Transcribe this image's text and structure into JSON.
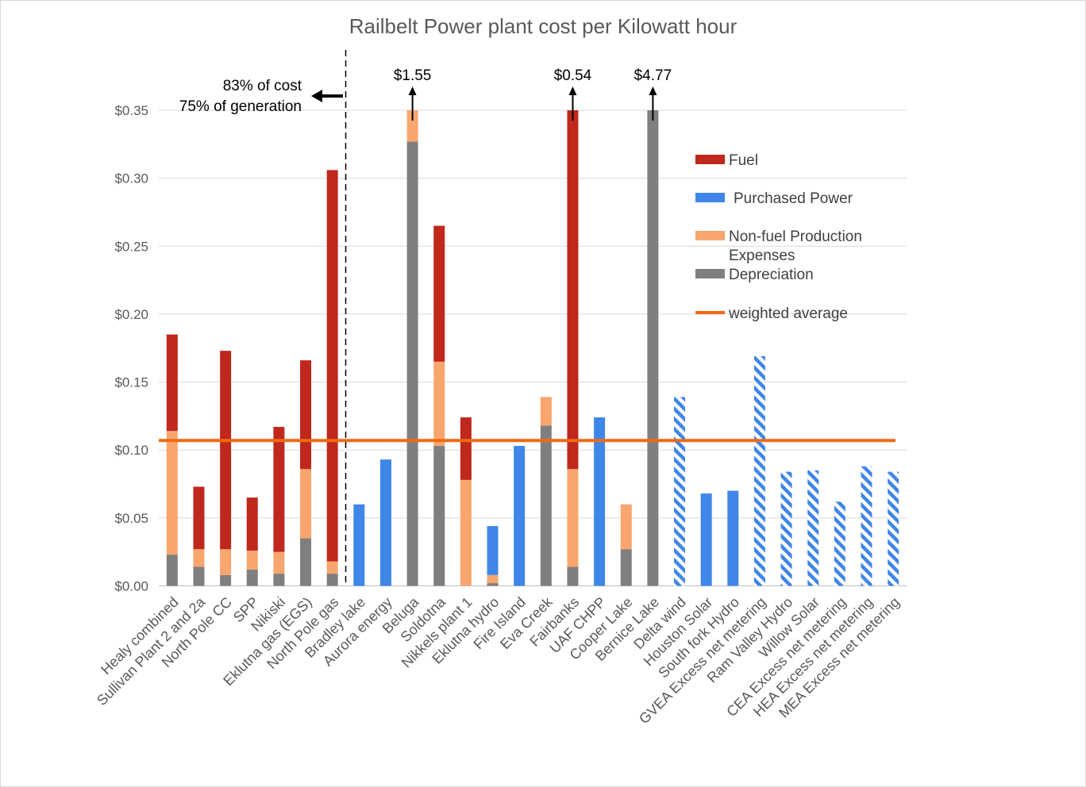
{
  "chart_data": {
    "type": "bar",
    "stacked": true,
    "title": "Railbelt Power plant cost per Kilowatt hour",
    "xlabel": "",
    "ylabel": "",
    "ylim": [
      0,
      0.35
    ],
    "yticks": [
      "$0.00",
      "$0.05",
      "$0.10",
      "$0.15",
      "$0.20",
      "$0.25",
      "$0.30",
      "$0.35"
    ],
    "ytick_values": [
      0,
      0.05,
      0.1,
      0.15,
      0.2,
      0.25,
      0.3,
      0.35
    ],
    "categories": [
      "Healy combined",
      "Sullivan Plant 2 and 2a",
      "North Pole CC",
      "SPP",
      "Nikiski",
      "Eklutna gas (EGS)",
      "North Pole gas",
      "Bradley lake",
      "Aurora energy",
      "Beluga",
      "Soldotna",
      "Nikkels plant 1",
      "Eklutna hydro",
      "Fire Island",
      "Eva Creek",
      "Fairbanks",
      "UAF CHPP",
      "Cooper Lake",
      "Bernice Lake",
      "Delta wind",
      "Houston Solar",
      "South fork Hydro",
      "GVEA Excess net metering",
      "Ram Valley Hydro",
      "Willow Solar",
      "CEA Excess net metering",
      "HEA Excess net metering",
      "MEA Excess net metering"
    ],
    "series": [
      {
        "name": "Depreciation",
        "color": "#7f7f7f",
        "values": [
          0.023,
          0.014,
          0.008,
          0.012,
          0.009,
          0.035,
          0.009,
          0,
          0,
          0.327,
          0.103,
          0,
          0.002,
          0,
          0.118,
          0.014,
          0,
          0.027,
          0.35,
          0,
          0,
          0,
          0,
          0,
          0,
          0,
          0,
          0
        ]
      },
      {
        "name": "Non-fuel Production Expenses",
        "color": "#f8a66d",
        "values": [
          0.091,
          0.013,
          0.019,
          0.014,
          0.016,
          0.051,
          0.009,
          0,
          0,
          0.023,
          0.062,
          0.078,
          0.006,
          0,
          0.021,
          0.072,
          0,
          0.033,
          0,
          0,
          0,
          0,
          0,
          0,
          0,
          0,
          0,
          0
        ]
      },
      {
        "name": "Fuel",
        "color": "#c0271d",
        "values": [
          0.071,
          0.046,
          0.146,
          0.039,
          0.092,
          0.08,
          0.288,
          0,
          0,
          0,
          0.1,
          0.046,
          0,
          0,
          0,
          0.264,
          0,
          0,
          0,
          0,
          0,
          0,
          0,
          0,
          0,
          0,
          0,
          0
        ]
      },
      {
        "name": "Purchased Power",
        "color": "#3f86e8",
        "values": [
          0,
          0,
          0,
          0,
          0,
          0,
          0,
          0.06,
          0.093,
          0,
          0,
          0,
          0.036,
          0.103,
          0,
          0,
          0.124,
          0,
          0,
          0.139,
          0.068,
          0.07,
          0.169,
          0.084,
          0.085,
          0.062,
          0.088,
          0.084
        ]
      }
    ],
    "hatched_categories": [
      "Delta wind",
      "GVEA Excess net metering",
      "Ram Valley Hydro",
      "Willow Solar",
      "CEA Excess net metering",
      "HEA Excess net metering",
      "MEA Excess net metering"
    ],
    "weighted_average": {
      "name": "weighted average",
      "value": 0.107,
      "color": "#f06a14"
    },
    "legend": {
      "position": "right",
      "entries": [
        {
          "label": "Fuel",
          "color": "#c0271d",
          "kind": "box"
        },
        {
          "label": "Purchased Power",
          "color": "#3f86e8",
          "kind": "box"
        },
        {
          "label_lines": [
            "Non-fuel Production",
            "Expenses"
          ],
          "color": "#f8a66d",
          "kind": "box"
        },
        {
          "label": "Depreciation",
          "color": "#7f7f7f",
          "kind": "box"
        },
        {
          "label": "weighted average",
          "color": "#f06a14",
          "kind": "line"
        }
      ]
    },
    "annotations": {
      "divider_after": "North Pole gas",
      "cost_share_lines": [
        "83% of cost",
        "75% of generation"
      ],
      "overflow_labels": [
        {
          "category": "Beluga",
          "text": "$1.55"
        },
        {
          "category": "Fairbanks",
          "text": "$0.54"
        },
        {
          "category": "Bernice Lake",
          "text": "$4.77"
        }
      ]
    }
  }
}
